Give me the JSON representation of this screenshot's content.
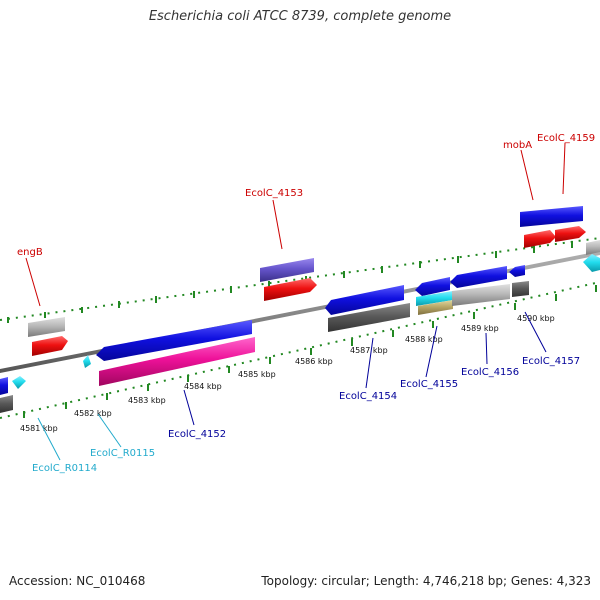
{
  "header": {
    "title": "Escherichia coli ATCC 8739, complete genome"
  },
  "footer": {
    "accession": "Accession: NC_010468",
    "summary": "Topology: circular; Length: 4,746,218 bp; Genes: 4,323"
  },
  "ticks": [
    "4581 kbp",
    "4582 kbp",
    "4583 kbp",
    "4584 kbp",
    "4585 kbp",
    "4586 kbp",
    "4587 kbp",
    "4588 kbp",
    "4589 kbp",
    "4590 kbp"
  ],
  "labels": {
    "engB": "engB",
    "ecolc_4153": "EcolC_4153",
    "moba": "mobA",
    "ecolc_4159": "EcolC_4159",
    "ecolc_r0114": "EcolC_R0114",
    "ecolc_r0115": "EcolC_R0115",
    "ecolc_4152": "EcolC_4152",
    "ecolc_4154": "EcolC_4154",
    "ecolc_4155": "EcolC_4155",
    "ecolc_4156": "EcolC_4156",
    "ecolc_4157": "EcolC_4157"
  },
  "colors": {
    "forward_cds": "#1010d0",
    "reverse_cds": "#ee1111",
    "rrna": "#ee1199",
    "trna": "#33ccee",
    "gene_grey": "#888888",
    "dark_grey": "#555555",
    "purple": "#6655cc",
    "tick_green": "#228822",
    "label_red": "#cc0000",
    "label_blue": "#000099",
    "label_cyan": "#22aacc"
  }
}
